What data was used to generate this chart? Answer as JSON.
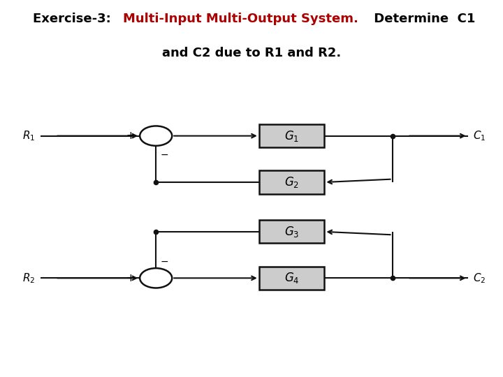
{
  "title_black1": "Exercise-3: ",
  "title_red": "Multi-Input Multi-Output System.",
  "title_black2": " Determine  C1",
  "title_line2": "and C2 due to R1 and R2.",
  "title_fontsize": 13,
  "bg_color": "#ffffff",
  "box_facecolor": "#cccccc",
  "box_edgecolor": "#111111",
  "line_color": "#111111",
  "red_color": "#aa0000",
  "fig_width": 7.2,
  "fig_height": 5.4,
  "dpi": 100
}
